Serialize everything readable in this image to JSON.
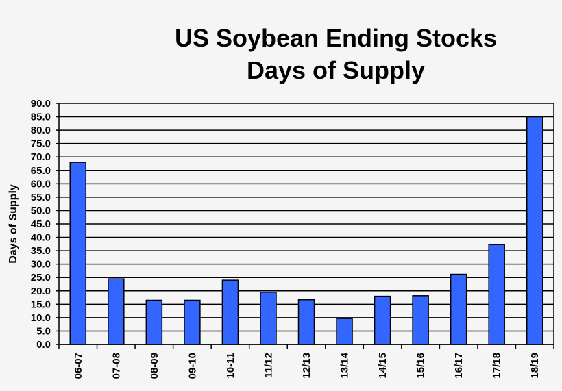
{
  "chart_data": {
    "type": "bar",
    "title": "US Soybean Ending Stocks",
    "subtitle": "Days of Supply",
    "xlabel": "",
    "ylabel": "Days of Supply",
    "categories": [
      "06-07",
      "07-08",
      "08-09",
      "09-10",
      "10-11",
      "11/12",
      "12/13",
      "13/14",
      "14/15",
      "15/16",
      "16/17",
      "17/18",
      "18/19"
    ],
    "values": [
      68,
      24.5,
      16.5,
      16.5,
      24,
      19.5,
      16.7,
      9.7,
      18,
      18.2,
      26.2,
      37.3,
      85
    ],
    "ylim": [
      0,
      90
    ],
    "yticks": [
      "0.0",
      "5.0",
      "10.0",
      "15.0",
      "20.0",
      "25.0",
      "30.0",
      "35.0",
      "40.0",
      "45.0",
      "50.0",
      "55.0",
      "60.0",
      "65.0",
      "70.0",
      "75.0",
      "80.0",
      "85.0",
      "90.0"
    ],
    "grid": true,
    "legend": "none",
    "bar_color": "#3366ff",
    "grid_color": "#000000",
    "background": "#f5f5f5"
  }
}
